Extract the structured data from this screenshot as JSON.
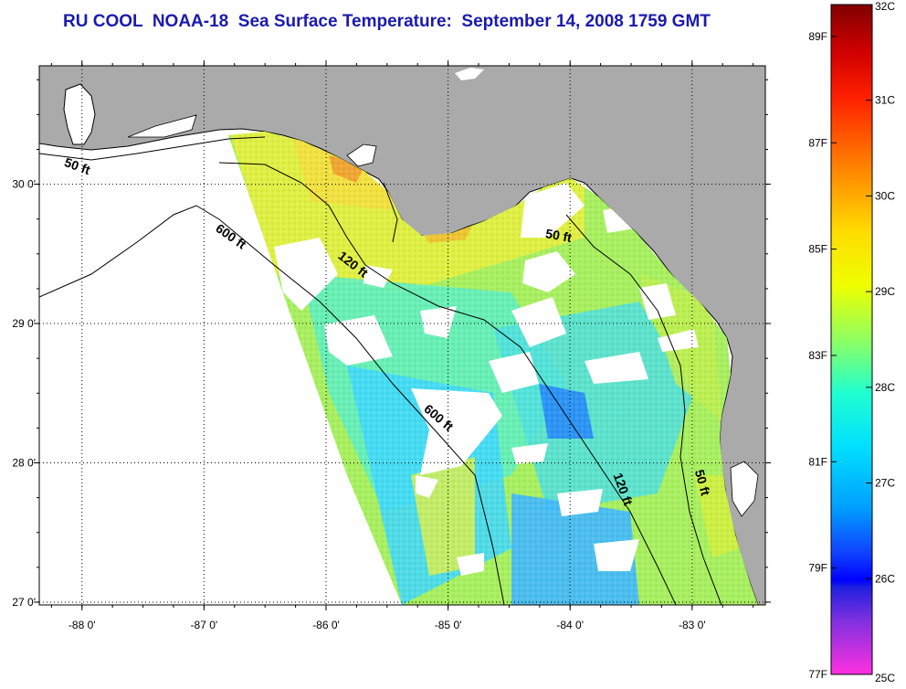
{
  "title": "RU COOL  NOAA-18  Sea Surface Temperature:  September 14, 2008 1759 GMT",
  "map": {
    "lon_range": [
      -88.35,
      -82.4
    ],
    "lat_range": [
      26.98,
      30.85
    ],
    "x_ticks": [
      {
        "lon": -88,
        "label": "-88 0'"
      },
      {
        "lon": -87,
        "label": "-87 0'"
      },
      {
        "lon": -86,
        "label": "-86 0'"
      },
      {
        "lon": -85,
        "label": "-85 0'"
      },
      {
        "lon": -84,
        "label": "-84 0'"
      },
      {
        "lon": -83,
        "label": "-83 0'"
      }
    ],
    "y_ticks": [
      {
        "lat": 30,
        "label": "30 0'"
      },
      {
        "lat": 29,
        "label": "29 0'"
      },
      {
        "lat": 28,
        "label": "28 0'"
      },
      {
        "lat": 27,
        "label": "27 0'"
      }
    ],
    "grid": "dotted",
    "colors": {
      "land": "#aaaaaa",
      "water_nodata": "#ffffff",
      "contour": "#000000"
    },
    "contour_labels": [
      {
        "text": "50 ft",
        "lon": -88.05,
        "lat": 30.1
      },
      {
        "text": "600 ft",
        "lon": -86.8,
        "lat": 29.6
      },
      {
        "text": "120 ft",
        "lon": -85.8,
        "lat": 29.4
      },
      {
        "text": "50 ft",
        "lon": -84.1,
        "lat": 29.6
      },
      {
        "text": "600 ft",
        "lon": -85.1,
        "lat": 28.3
      },
      {
        "text": "120 ft",
        "lon": -83.6,
        "lat": 27.8
      },
      {
        "text": "50 ft",
        "lon": -82.95,
        "lat": 27.85
      }
    ]
  },
  "colorbar": {
    "celsius_labels": [
      "32C",
      "31C",
      "30C",
      "29C",
      "28C",
      "27C",
      "26C",
      "25C"
    ],
    "fahrenheit_labels": [
      "89F",
      "87F",
      "85F",
      "83F",
      "81F",
      "79F",
      "77F"
    ]
  }
}
